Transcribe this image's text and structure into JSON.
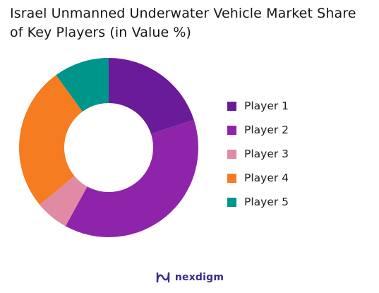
{
  "title": {
    "line1": "Israel Unmanned Underwater Vehicle Market Share",
    "line2": "of Key Players (in Value %)"
  },
  "chart_data": {
    "type": "pie",
    "variant": "donut",
    "title": "Israel Unmanned Underwater Vehicle Market Share of Key Players (in Value %)",
    "categories": [
      "Player 1",
      "Player 2",
      "Player 3",
      "Player 4",
      "Player 5"
    ],
    "values": [
      20,
      38,
      6,
      26,
      10
    ],
    "colors": [
      "#6a1b9a",
      "#8e24aa",
      "#e08aa4",
      "#f57c20",
      "#00958a"
    ],
    "legend_position": "right"
  },
  "brand": {
    "name": "nexdigm",
    "color": "#3c2a86"
  }
}
